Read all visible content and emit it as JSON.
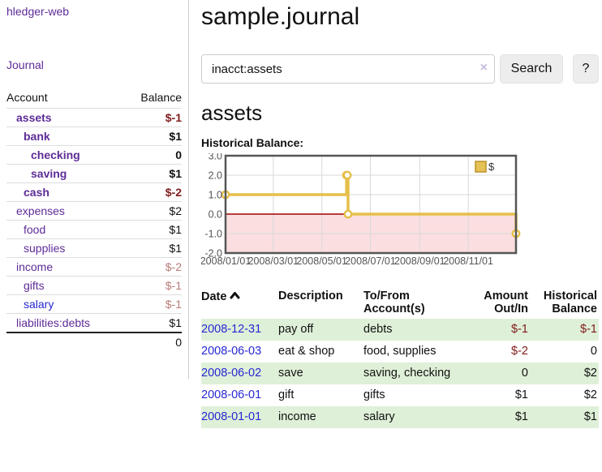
{
  "app": {
    "brand": "hledger-web",
    "nav_journal": "Journal"
  },
  "sidebar": {
    "accounts_header": {
      "account": "Account",
      "balance": "Balance"
    },
    "accounts": [
      {
        "name": "assets",
        "level": 1,
        "bold": true,
        "balance": "$-1",
        "cls": "amt-neg"
      },
      {
        "name": "bank",
        "level": 2,
        "bold": true,
        "balance": "$1",
        "cls": ""
      },
      {
        "name": "checking",
        "level": 3,
        "bold": true,
        "balance": "0",
        "cls": ""
      },
      {
        "name": "saving",
        "level": 3,
        "bold": true,
        "balance": "$1",
        "cls": ""
      },
      {
        "name": "cash",
        "level": 2,
        "bold": true,
        "balance": "$-2",
        "cls": "amt-neg"
      },
      {
        "name": "expenses",
        "level": 1,
        "bold": false,
        "balance": "$2",
        "cls": ""
      },
      {
        "name": "food",
        "level": 2,
        "bold": false,
        "balance": "$1",
        "cls": ""
      },
      {
        "name": "supplies",
        "level": 2,
        "bold": false,
        "balance": "$1",
        "cls": ""
      },
      {
        "name": "income",
        "level": 1,
        "bold": false,
        "balance": "$-2",
        "cls": "amt-neg-soft"
      },
      {
        "name": "gifts",
        "level": 2,
        "bold": false,
        "balance": "$-1",
        "cls": "amt-neg-soft"
      },
      {
        "name": "salary",
        "level": 2,
        "bold": false,
        "balance": "$-1",
        "cls": "amt-neg-soft",
        "link": "blue"
      },
      {
        "name": "liabilities:debts",
        "level": 1,
        "bold": false,
        "balance": "$1",
        "cls": ""
      }
    ],
    "total": "0"
  },
  "header": {
    "title": "sample.journal"
  },
  "search": {
    "value": "inacct:assets",
    "clear_icon": "×",
    "button_label": "Search",
    "help_label": "?"
  },
  "main": {
    "account_title": "assets",
    "chart_label": "Historical Balance:"
  },
  "chart_data": {
    "type": "line",
    "style": "step-after",
    "title": "Historical Balance",
    "series": [
      {
        "name": "$",
        "points": [
          [
            "2008/01/01",
            1
          ],
          [
            "2008/06/01",
            2
          ],
          [
            "2008/06/02",
            2
          ],
          [
            "2008/06/03",
            0
          ],
          [
            "2008/12/31",
            -1
          ]
        ]
      }
    ],
    "xrange": [
      "2008/01/01",
      "2008/12/31"
    ],
    "ylim": [
      -2,
      3
    ],
    "yticks": [
      "3.0",
      "2.0",
      "1.0",
      "0.0",
      "-1.0",
      "-2.0"
    ],
    "xticks": [
      "2008/01/01",
      "2008/03/01",
      "2008/05/01",
      "2008/07/01",
      "2008/09/01",
      "2008/11/01"
    ],
    "grid": true,
    "legend_position": "top-right",
    "colors": {
      "line": "#e6bf4a",
      "point_fill": "#ffffff",
      "negative_fill": "#fbdee0",
      "zero_line": "#a00000",
      "grid_line": "#d9d9d9",
      "border": "#555555",
      "tick_text": "#555555",
      "legend_fill": "#e6c254",
      "legend_border": "#b8922a"
    }
  },
  "transactions": {
    "headers": {
      "date": "Date",
      "description": "Description",
      "account": "To/From Account(s)",
      "amount": "Amount Out/In",
      "balance": "Historical Balance"
    },
    "rows": [
      {
        "date": "2008-12-31",
        "description": "pay off",
        "accounts": "debts",
        "amount": "$-1",
        "amount_cls": "amt-neg",
        "balance": "$-1",
        "balance_cls": "amt-neg"
      },
      {
        "date": "2008-06-03",
        "description": "eat & shop",
        "accounts": "food, supplies",
        "amount": "$-2",
        "amount_cls": "amt-neg",
        "balance": "0",
        "balance_cls": ""
      },
      {
        "date": "2008-06-02",
        "description": "save",
        "accounts": "saving, checking",
        "amount": "0",
        "amount_cls": "",
        "balance": "$2",
        "balance_cls": ""
      },
      {
        "date": "2008-06-01",
        "description": "gift",
        "accounts": "gifts",
        "amount": "$1",
        "amount_cls": "",
        "balance": "$2",
        "balance_cls": ""
      },
      {
        "date": "2008-01-01",
        "description": "income",
        "accounts": "salary",
        "amount": "$1",
        "amount_cls": "",
        "balance": "$1",
        "balance_cls": ""
      }
    ]
  }
}
